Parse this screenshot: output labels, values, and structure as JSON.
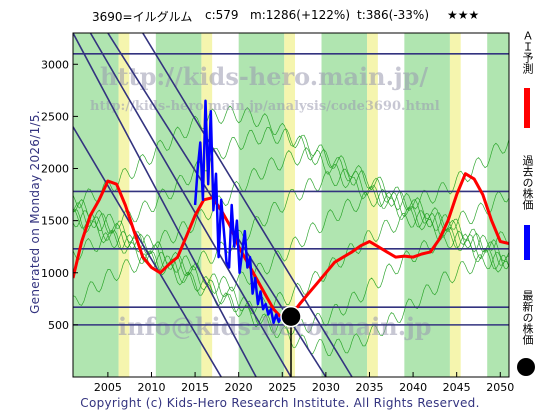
{
  "header": {
    "code_name": "3690=イルグルム",
    "current": "c:579",
    "max": "m:1286(+122%)",
    "target": "t:386(-33%)",
    "stars": "★★★"
  },
  "generated_label": "Generated on Monday 2026/1/5.",
  "copyright": "Copyright (c) Kids-Hero Research Institute. All Rights Reserved.",
  "watermark": {
    "site": "http://kids-hero.main.jp/",
    "path": "http://kids-hero.main.jp/analysis/code3690.html",
    "mail": "info@kids-hero.main.jp"
  },
  "legend": {
    "ai_forecast": "ＡＩ予測",
    "past_price": "過去の株価",
    "latest_price": "最新の株価"
  },
  "colors": {
    "forecast": "#ff0000",
    "past": "#0000ff",
    "latest": "#000000",
    "grid_band": "#33337f",
    "green_band": "#6fd06f",
    "yellow_band": "#f2f29a"
  },
  "chart_data": {
    "type": "line",
    "xlim": [
      2001,
      2051
    ],
    "ylim": [
      0,
      3300
    ],
    "x_ticks": [
      2005,
      2010,
      2015,
      2020,
      2025,
      2030,
      2035,
      2040,
      2045,
      2050
    ],
    "y_ticks": [
      500,
      1000,
      1500,
      2000,
      2500,
      3000
    ],
    "horizontal_levels": [
      500,
      670,
      1230,
      1780,
      3100
    ],
    "latest_point": {
      "x": 2026.0,
      "y": 579
    },
    "series": [
      {
        "role": "forecast",
        "x": [
          2001,
          2002,
          2003,
          2004,
          2005,
          2006,
          2007,
          2008,
          2009,
          2010,
          2011,
          2012,
          2013,
          2014,
          2015,
          2016,
          2017,
          2018,
          2019,
          2020,
          2021,
          2022,
          2023,
          2024,
          2025,
          2026,
          2027,
          2028,
          2029,
          2030,
          2031,
          2032,
          2033,
          2034,
          2035,
          2036,
          2037,
          2038,
          2039,
          2040,
          2041,
          2042,
          2043,
          2044,
          2045,
          2046,
          2047,
          2048,
          2049,
          2050,
          2051
        ],
        "y": [
          950,
          1300,
          1550,
          1700,
          1880,
          1850,
          1650,
          1400,
          1150,
          1050,
          1000,
          1080,
          1150,
          1350,
          1550,
          1700,
          1720,
          1600,
          1450,
          1250,
          1100,
          950,
          800,
          650,
          560,
          590,
          700,
          800,
          900,
          1000,
          1100,
          1150,
          1200,
          1260,
          1300,
          1250,
          1200,
          1150,
          1160,
          1150,
          1180,
          1200,
          1320,
          1500,
          1750,
          1950,
          1900,
          1750,
          1500,
          1300,
          1280
        ]
      },
      {
        "role": "past",
        "x": [
          2015.0,
          2015.3,
          2015.6,
          2015.9,
          2016.2,
          2016.5,
          2016.8,
          2017.1,
          2017.4,
          2017.7,
          2018.0,
          2018.3,
          2018.6,
          2018.9,
          2019.2,
          2019.5,
          2019.8,
          2020.1,
          2020.4,
          2020.7,
          2021.0,
          2021.3,
          2021.6,
          2021.9,
          2022.2,
          2022.5,
          2022.8,
          2023.1,
          2023.4,
          2023.7,
          2024.0,
          2024.3,
          2024.6,
          2024.9,
          2025.2,
          2025.5,
          2025.8,
          2026.0
        ],
        "y": [
          1650,
          2000,
          2250,
          1700,
          2650,
          1850,
          2550,
          1600,
          1950,
          1150,
          1700,
          1400,
          1100,
          1050,
          1650,
          1250,
          1500,
          1000,
          1200,
          1400,
          1050,
          1150,
          800,
          950,
          700,
          820,
          650,
          700,
          600,
          650,
          520,
          600,
          530,
          580,
          620,
          560,
          600,
          579
        ]
      }
    ]
  }
}
